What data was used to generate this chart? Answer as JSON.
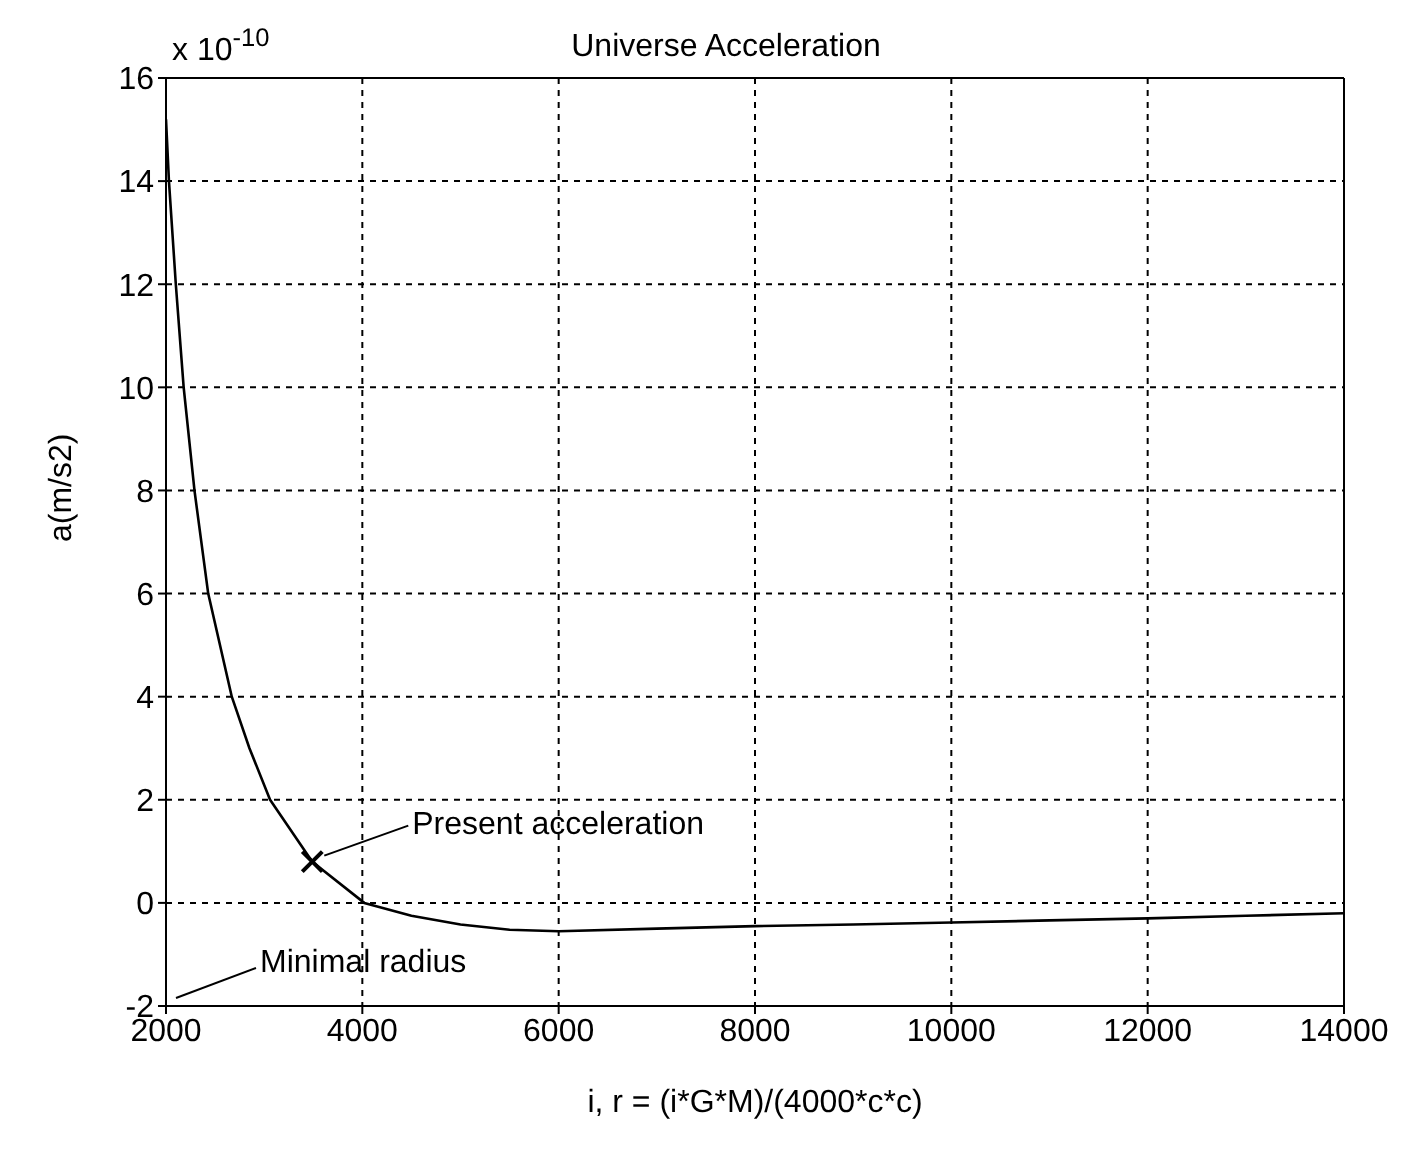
{
  "chart_data": {
    "type": "line",
    "title": "Universe Acceleration",
    "xlabel": "i,   r = (i*G*M)/(4000*c*c)",
    "ylabel": "a(m/s2)",
    "xlim": [
      2000,
      14000
    ],
    "xticks": [
      2000,
      4000,
      6000,
      8000,
      10000,
      12000,
      14000
    ],
    "ylim": [
      -2,
      16
    ],
    "yticks": [
      -2,
      0,
      2,
      4,
      6,
      8,
      10,
      12,
      14,
      16
    ],
    "grid": true,
    "series": [
      {
        "color": "#000000",
        "line_style": "solid",
        "x": [
          2000,
          2030,
          2100,
          2180,
          2290,
          2430,
          2670,
          2850,
          3060,
          3490,
          4020,
          4500,
          5000,
          5500,
          6000,
          7000,
          8000,
          9000,
          10000,
          11000,
          12000,
          13000,
          14000
        ],
        "values": [
          15.2,
          14,
          12,
          10,
          8,
          6,
          4,
          3,
          2,
          0.8,
          0,
          -0.25,
          -0.42,
          -0.52,
          -0.55,
          -0.5,
          -0.45,
          -0.42,
          -0.38,
          -0.34,
          -0.3,
          -0.25,
          -0.2
        ]
      },
      {
        "type": "scatter",
        "color": "#000000",
        "marker": "cross",
        "x": [
          3490
        ],
        "values": [
          0.8
        ]
      }
    ],
    "annotations": [
      "x 10$^{-10}$",
      {
        "text": "Present acceleration",
        "x": 3490,
        "y": 0.8
      },
      "Minimal radius"
    ]
  }
}
